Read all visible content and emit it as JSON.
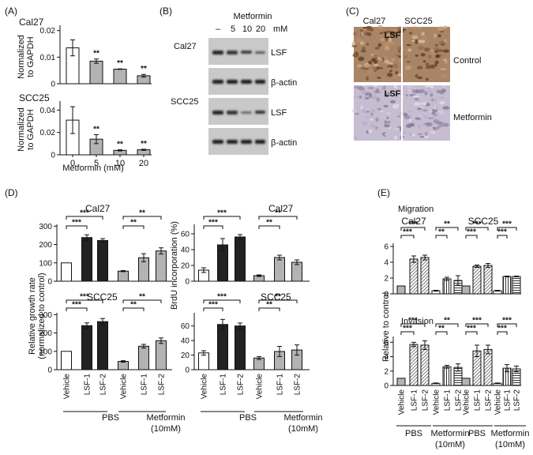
{
  "panels": {
    "a": "(A)",
    "b": "(B)",
    "c": "(C)",
    "d": "(D)",
    "e": "(E)"
  },
  "panelA": {
    "xlabel": "Metformin (mM)"
  },
  "panelB": {
    "treatment": "Metformin",
    "doses": [
      "–",
      "5",
      "10",
      "20"
    ],
    "unit": "mM",
    "cells": [
      "Cal27",
      "SCC25"
    ],
    "bands": [
      "LSF",
      "β-actin"
    ]
  },
  "panelC": {
    "cols": [
      "Cal27",
      "SCC25"
    ],
    "rows": [
      "Control",
      "Metformin"
    ],
    "stain": "LSF",
    "colors": {
      "control": "#a98567",
      "metformin": "#c6bdd0"
    }
  },
  "panelD": {
    "groups": [
      "PBS",
      "Metformin",
      "(10mM)"
    ]
  },
  "panelE": {
    "sections": [
      "Migration",
      "Invasion"
    ],
    "ylabel": "Relative to control",
    "groups": [
      "PBS",
      "Metformin",
      "(10mM)"
    ]
  },
  "chart_data": [
    {
      "type": "bar",
      "panel": "A",
      "title": "Cal27",
      "ylabel": "Normalized to GAPDH",
      "categories": [
        "0",
        "5",
        "10",
        "20"
      ],
      "values": [
        0.0135,
        0.0085,
        0.0055,
        0.003
      ],
      "errors": [
        0.003,
        0.0008,
        0.0001,
        0.0005
      ],
      "significance": [
        "",
        "**",
        "**",
        "**"
      ],
      "yticks": [
        0,
        0.01,
        0.02
      ],
      "ytick_labels": [
        "0",
        "0.01",
        "0.02"
      ],
      "ylim": [
        0,
        0.022
      ]
    },
    {
      "type": "bar",
      "panel": "A",
      "title": "SCC25",
      "ylabel": "Normalized to GAPDH",
      "xlabel": "Metformin (mM)",
      "categories": [
        "0",
        "5",
        "10",
        "20"
      ],
      "values": [
        0.031,
        0.014,
        0.004,
        0.0045
      ],
      "errors": [
        0.012,
        0.004,
        0.0005,
        0.0005
      ],
      "significance": [
        "",
        "**",
        "**",
        "**"
      ],
      "yticks": [
        0,
        0.02,
        0.04
      ],
      "ytick_labels": [
        "0",
        "0.02",
        "0.04"
      ],
      "ylim": [
        0,
        0.048
      ]
    },
    {
      "type": "bar",
      "panel": "D",
      "title": "Cal27",
      "ylabel": "Relative growth rate (normalized to control)",
      "categories": [
        "Vehicle",
        "LSF-1",
        "LSF-2",
        "Vehicle",
        "LSF-1",
        "LSF-2"
      ],
      "values": [
        100,
        238,
        222,
        55,
        128,
        165
      ],
      "errors": [
        0,
        15,
        10,
        3,
        22,
        17
      ],
      "yticks": [
        0,
        100,
        200,
        300
      ],
      "ylim": [
        0,
        310
      ],
      "brackets": [
        {
          "from": 0,
          "to": 1,
          "label": "***"
        },
        {
          "from": 0,
          "to": 2,
          "label": "***"
        },
        {
          "from": 3,
          "to": 4,
          "label": "**"
        },
        {
          "from": 3,
          "to": 5,
          "label": "**"
        }
      ]
    },
    {
      "type": "bar",
      "panel": "D",
      "title": "SCC25",
      "categories": [
        "Vehicle",
        "LSF-1",
        "LSF-2",
        "Vehicle",
        "LSF-1",
        "LSF-2"
      ],
      "values": [
        100,
        240,
        262,
        45,
        128,
        158
      ],
      "errors": [
        0,
        15,
        17,
        4,
        10,
        15
      ],
      "yticks": [
        0,
        100,
        200,
        300
      ],
      "ylim": [
        0,
        310
      ],
      "brackets": [
        {
          "from": 0,
          "to": 1,
          "label": "***"
        },
        {
          "from": 0,
          "to": 2,
          "label": "***"
        },
        {
          "from": 3,
          "to": 4,
          "label": "**"
        },
        {
          "from": 3,
          "to": 5,
          "label": "**"
        }
      ]
    },
    {
      "type": "bar",
      "panel": "D",
      "title": "Cal27",
      "ylabel": "BrdU incorporation (%)",
      "categories": [
        "Vehicle",
        "LSF-1",
        "LSF-2",
        "Vehicle",
        "LSF-1",
        "LSF-2"
      ],
      "values": [
        14,
        46,
        56,
        7,
        30,
        24
      ],
      "errors": [
        3,
        8,
        3,
        1,
        3,
        3
      ],
      "yticks": [
        0,
        20,
        40,
        60
      ],
      "ylim": [
        0,
        72
      ],
      "brackets": [
        {
          "from": 0,
          "to": 1,
          "label": "***"
        },
        {
          "from": 0,
          "to": 2,
          "label": "***"
        },
        {
          "from": 3,
          "to": 4,
          "label": "**"
        },
        {
          "from": 3,
          "to": 5,
          "label": "**"
        }
      ]
    },
    {
      "type": "bar",
      "panel": "D",
      "title": "SCC25",
      "categories": [
        "Vehicle",
        "LSF-1",
        "LSF-2",
        "Vehicle",
        "LSF-1",
        "LSF-2"
      ],
      "values": [
        23,
        62,
        60,
        16,
        25,
        27
      ],
      "errors": [
        3,
        7,
        4,
        2,
        7,
        7
      ],
      "yticks": [
        0,
        20,
        40,
        60
      ],
      "ylim": [
        0,
        78
      ],
      "brackets": [
        {
          "from": 0,
          "to": 1,
          "label": "***"
        },
        {
          "from": 0,
          "to": 2,
          "label": "***"
        },
        {
          "from": 3,
          "to": 4,
          "label": "**"
        },
        {
          "from": 3,
          "to": 5,
          "label": "**"
        }
      ]
    },
    {
      "type": "bar",
      "panel": "E",
      "section": "Migration",
      "title": "Cal27",
      "categories": [
        "Vehicle",
        "LSF-1",
        "LSF-2",
        "Vehicle",
        "LSF-1",
        "LSF-2"
      ],
      "values": [
        1,
        4.4,
        4.6,
        0.4,
        1.9,
        1.7
      ],
      "errors": [
        0,
        0.4,
        0.3,
        0.05,
        0.2,
        0.6
      ],
      "yticks": [
        0,
        2,
        4,
        6
      ],
      "ylim": [
        0,
        6.4
      ],
      "brackets": [
        {
          "from": 0,
          "to": 1,
          "label": "***"
        },
        {
          "from": 0,
          "to": 2,
          "label": "***"
        },
        {
          "from": 3,
          "to": 4,
          "label": "**"
        },
        {
          "from": 3,
          "to": 5,
          "label": "**"
        }
      ]
    },
    {
      "type": "bar",
      "panel": "E",
      "section": "Migration",
      "title": "SCC25",
      "categories": [
        "Vehicle",
        "LSF-1",
        "LSF-2",
        "Vehicle",
        "LSF-1",
        "LSF-2"
      ],
      "values": [
        1,
        3.5,
        3.6,
        0.4,
        2.2,
        2.2
      ],
      "errors": [
        0,
        0.15,
        0.25,
        0.05,
        0.05,
        0.05
      ],
      "yticks": [
        0,
        2,
        4,
        6
      ],
      "ylim": [
        0,
        6.4
      ],
      "brackets": [
        {
          "from": 0,
          "to": 1,
          "label": "***"
        },
        {
          "from": 0,
          "to": 2,
          "label": "***"
        },
        {
          "from": 3,
          "to": 4,
          "label": "***"
        },
        {
          "from": 3,
          "to": 5,
          "label": "***"
        }
      ]
    },
    {
      "type": "bar",
      "panel": "E",
      "section": "Invasion",
      "title": "",
      "categories": [
        "Vehicle",
        "LSF-1",
        "LSF-2",
        "Vehicle",
        "LSF-1",
        "LSF-2"
      ],
      "values": [
        1,
        5.7,
        5.6,
        0.3,
        2.6,
        2.5
      ],
      "errors": [
        0,
        0.3,
        0.6,
        0.05,
        0.2,
        0.5
      ],
      "yticks": [
        0,
        2,
        4,
        6
      ],
      "ylim": [
        0,
        6.8
      ],
      "brackets": [
        {
          "from": 0,
          "to": 1,
          "label": "***"
        },
        {
          "from": 0,
          "to": 2,
          "label": "***"
        },
        {
          "from": 3,
          "to": 4,
          "label": "**"
        },
        {
          "from": 3,
          "to": 5,
          "label": "**"
        }
      ]
    },
    {
      "type": "bar",
      "panel": "E",
      "section": "Invasion",
      "title": "",
      "categories": [
        "Vehicle",
        "LSF-1",
        "LSF-2",
        "Vehicle",
        "LSF-1",
        "LSF-2"
      ],
      "values": [
        1,
        4.8,
        5.0,
        0.3,
        2.4,
        2.3
      ],
      "errors": [
        0,
        0.8,
        0.6,
        0.05,
        0.5,
        0.4
      ],
      "yticks": [
        0,
        2,
        4,
        6
      ],
      "ylim": [
        0,
        6.8
      ],
      "brackets": [
        {
          "from": 0,
          "to": 1,
          "label": "***"
        },
        {
          "from": 0,
          "to": 2,
          "label": "***"
        },
        {
          "from": 3,
          "to": 4,
          "label": "***"
        },
        {
          "from": 3,
          "to": 5,
          "label": "***"
        }
      ]
    }
  ]
}
